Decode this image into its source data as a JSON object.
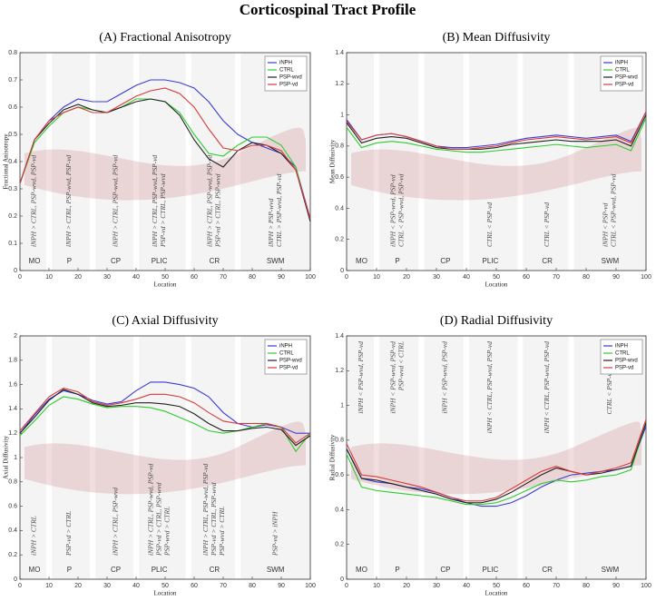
{
  "title": "Corticospinal Tract Profile",
  "chart_data": [
    {
      "type": "line",
      "title": "(A) Fractional Anisotropy",
      "xlabel": "Location",
      "ylabel": "Fractional Anisotropy",
      "x": [
        0,
        5,
        10,
        15,
        20,
        25,
        30,
        35,
        40,
        45,
        50,
        55,
        60,
        65,
        70,
        75,
        80,
        85,
        90,
        95,
        100
      ],
      "xlim": [
        0,
        100
      ],
      "xticks": [
        0,
        10,
        20,
        30,
        40,
        50,
        60,
        70,
        80,
        90,
        100
      ],
      "ylim": [
        0,
        0.8
      ],
      "yticks": [
        0,
        0.1,
        0.2,
        0.3,
        0.4,
        0.5,
        0.6,
        0.7,
        0.8
      ],
      "legend": "upper right",
      "annotation_position": "bottom",
      "series": [
        {
          "name": "iNPH",
          "color": "#3b3bd6",
          "values": [
            0.32,
            0.48,
            0.55,
            0.6,
            0.63,
            0.62,
            0.62,
            0.65,
            0.68,
            0.7,
            0.7,
            0.69,
            0.67,
            0.62,
            0.55,
            0.5,
            0.47,
            0.45,
            0.43,
            0.38,
            0.19
          ]
        },
        {
          "name": "CTRL",
          "color": "#2ecc2e",
          "values": [
            0.32,
            0.47,
            0.53,
            0.58,
            0.6,
            0.59,
            0.58,
            0.6,
            0.63,
            0.63,
            0.62,
            0.58,
            0.5,
            0.43,
            0.42,
            0.46,
            0.49,
            0.49,
            0.46,
            0.38,
            0.18
          ]
        },
        {
          "name": "PSP-wvd",
          "color": "#222222",
          "values": [
            0.32,
            0.48,
            0.54,
            0.59,
            0.61,
            0.59,
            0.58,
            0.6,
            0.62,
            0.63,
            0.62,
            0.57,
            0.48,
            0.41,
            0.38,
            0.44,
            0.47,
            0.46,
            0.43,
            0.37,
            0.18
          ]
        },
        {
          "name": "PSP-vd",
          "color": "#d83a3a",
          "values": [
            0.32,
            0.48,
            0.55,
            0.58,
            0.6,
            0.58,
            0.58,
            0.61,
            0.64,
            0.66,
            0.67,
            0.65,
            0.6,
            0.52,
            0.45,
            0.44,
            0.46,
            0.46,
            0.44,
            0.37,
            0.19
          ]
        }
      ],
      "regions": [
        "MO",
        "P",
        "CP",
        "PLIC",
        "CR",
        "SWM"
      ],
      "annotations": [
        [
          "iNPH > CTRL, PSP-wvd, PSP-vd"
        ],
        [
          "iNPH > CTRL, PSP-wvd, PSP-vd"
        ],
        [
          "iNPH > CTRL, PSP-wvd, PSP-vd"
        ],
        [
          "iNPH > CTRL, PSP-wvd, PSP-vd",
          "PSP-vd > CTRL, PSP-wvd"
        ],
        [
          "iNPH > CTRL, PSP-wvd, PSP-vd",
          "PSP-vd > CTRL, PSP-wvd"
        ],
        [
          "iNPH > PSP-wvd",
          "CTRL > PSP-wvd, PSP-vd"
        ]
      ]
    },
    {
      "type": "line",
      "title": "(B) Mean Diffusivity",
      "xlabel": "Location",
      "ylabel": "Mean Diffusivity",
      "x": [
        0,
        5,
        10,
        15,
        20,
        25,
        30,
        35,
        40,
        45,
        50,
        55,
        60,
        65,
        70,
        75,
        80,
        85,
        90,
        95,
        100
      ],
      "xlim": [
        0,
        100
      ],
      "xticks": [
        0,
        10,
        20,
        30,
        40,
        50,
        60,
        70,
        80,
        90,
        100
      ],
      "ylim": [
        0,
        1.4
      ],
      "yticks": [
        0,
        0.2,
        0.4,
        0.6,
        0.8,
        1,
        1.2,
        1.4
      ],
      "legend": "upper right",
      "annotation_position": "bottom",
      "series": [
        {
          "name": "iNPH",
          "color": "#3b3bd6",
          "values": [
            0.97,
            0.84,
            0.87,
            0.88,
            0.86,
            0.83,
            0.8,
            0.79,
            0.79,
            0.8,
            0.81,
            0.83,
            0.85,
            0.86,
            0.87,
            0.86,
            0.85,
            0.86,
            0.87,
            0.83,
            1.02
          ]
        },
        {
          "name": "CTRL",
          "color": "#2ecc2e",
          "values": [
            0.92,
            0.79,
            0.82,
            0.83,
            0.82,
            0.8,
            0.78,
            0.77,
            0.76,
            0.76,
            0.77,
            0.78,
            0.79,
            0.8,
            0.81,
            0.8,
            0.79,
            0.8,
            0.81,
            0.77,
            0.98
          ]
        },
        {
          "name": "PSP-wvd",
          "color": "#222222",
          "values": [
            0.95,
            0.82,
            0.85,
            0.86,
            0.85,
            0.82,
            0.79,
            0.78,
            0.78,
            0.78,
            0.79,
            0.81,
            0.82,
            0.83,
            0.84,
            0.83,
            0.83,
            0.83,
            0.84,
            0.8,
            1.0
          ]
        },
        {
          "name": "PSP-vd",
          "color": "#d83a3a",
          "values": [
            0.96,
            0.84,
            0.87,
            0.88,
            0.86,
            0.83,
            0.8,
            0.78,
            0.78,
            0.79,
            0.8,
            0.82,
            0.84,
            0.85,
            0.86,
            0.85,
            0.84,
            0.85,
            0.86,
            0.82,
            1.02
          ]
        }
      ],
      "regions": [
        "MO",
        "P",
        "CP",
        "PLIC",
        "CR",
        "SWM"
      ],
      "annotations": [
        [],
        [
          "iNPH < PSP-wvd, PSP-vd",
          "CTRL < PSP-wvd, PSP-vd"
        ],
        [],
        [
          "CTRL < PSP-vd"
        ],
        [
          "CTRL < PSP-vd"
        ],
        [
          "iNPH < PSP-vd",
          "CTRL < PSP-wvd, PSP-vd"
        ]
      ]
    },
    {
      "type": "line",
      "title": "(C) Axial Diffusivity",
      "xlabel": "Location",
      "ylabel": "Axial Diffusivity",
      "x": [
        0,
        5,
        10,
        15,
        20,
        25,
        30,
        35,
        40,
        45,
        50,
        55,
        60,
        65,
        70,
        75,
        80,
        85,
        90,
        95,
        100
      ],
      "xlim": [
        0,
        100
      ],
      "xticks": [
        0,
        10,
        20,
        30,
        40,
        50,
        60,
        70,
        80,
        90,
        100
      ],
      "ylim": [
        0,
        2
      ],
      "yticks": [
        0,
        0.2,
        0.4,
        0.6,
        0.8,
        1,
        1.2,
        1.4,
        1.6,
        1.8,
        2
      ],
      "legend": "upper right",
      "annotation_position": "bottom",
      "series": [
        {
          "name": "iNPH",
          "color": "#3b3bd6",
          "values": [
            1.2,
            1.35,
            1.48,
            1.55,
            1.52,
            1.47,
            1.44,
            1.46,
            1.55,
            1.62,
            1.62,
            1.6,
            1.57,
            1.5,
            1.37,
            1.28,
            1.25,
            1.27,
            1.25,
            1.2,
            1.2
          ]
        },
        {
          "name": "CTRL",
          "color": "#2ecc2e",
          "values": [
            1.18,
            1.3,
            1.43,
            1.5,
            1.48,
            1.44,
            1.41,
            1.42,
            1.42,
            1.41,
            1.38,
            1.33,
            1.28,
            1.22,
            1.2,
            1.22,
            1.25,
            1.28,
            1.25,
            1.05,
            1.2
          ]
        },
        {
          "name": "PSP-wvd",
          "color": "#222222",
          "values": [
            1.2,
            1.33,
            1.47,
            1.56,
            1.52,
            1.45,
            1.42,
            1.43,
            1.45,
            1.45,
            1.44,
            1.42,
            1.36,
            1.28,
            1.22,
            1.22,
            1.24,
            1.25,
            1.23,
            1.1,
            1.18
          ]
        },
        {
          "name": "PSP-vd",
          "color": "#d83a3a",
          "values": [
            1.22,
            1.36,
            1.5,
            1.57,
            1.54,
            1.46,
            1.43,
            1.45,
            1.48,
            1.52,
            1.52,
            1.5,
            1.45,
            1.37,
            1.3,
            1.28,
            1.28,
            1.28,
            1.25,
            1.12,
            1.2
          ]
        }
      ],
      "regions": [
        "MO",
        "P",
        "CP",
        "PLIC",
        "CR",
        "SWM"
      ],
      "annotations": [
        [
          "iNPH > CTRL"
        ],
        [
          "PSP-vd > CTRL"
        ],
        [
          "iNPH > CTRL, PSP-wvd"
        ],
        [
          "iNPH > CTRL, PSP-wvd, PSP-vd",
          "PSP-vd > CTRL, PSP-wvd",
          "PSP-wvd > CTRL"
        ],
        [
          "iNPH > CTRL, PSP-wvd, PSP-vd",
          "PSP-vd > CTRL, PSP-wvd",
          "PSP-wvd > CTRL"
        ],
        [
          "PSP-vd > iNPH"
        ]
      ]
    },
    {
      "type": "line",
      "title": "(D) Radial Diffusivity",
      "xlabel": "Location",
      "ylabel": "Radial Diffusivity",
      "x": [
        0,
        5,
        10,
        15,
        20,
        25,
        30,
        35,
        40,
        45,
        50,
        55,
        60,
        65,
        70,
        75,
        80,
        85,
        90,
        95,
        100
      ],
      "xlim": [
        0,
        100
      ],
      "xticks": [
        0,
        10,
        20,
        30,
        40,
        50,
        60,
        70,
        80,
        90,
        100
      ],
      "ylim": [
        0,
        1.4
      ],
      "yticks": [
        0,
        0.2,
        0.4,
        0.6,
        0.8,
        1,
        1.2,
        1.4
      ],
      "legend": "upper right",
      "annotation_position": "top",
      "series": [
        {
          "name": "iNPH",
          "color": "#3b3bd6",
          "values": [
            0.75,
            0.58,
            0.56,
            0.55,
            0.53,
            0.52,
            0.5,
            0.47,
            0.44,
            0.42,
            0.42,
            0.44,
            0.48,
            0.53,
            0.57,
            0.6,
            0.61,
            0.62,
            0.63,
            0.65,
            0.88
          ]
        },
        {
          "name": "CTRL",
          "color": "#2ecc2e",
          "values": [
            0.72,
            0.53,
            0.51,
            0.5,
            0.49,
            0.48,
            0.47,
            0.45,
            0.43,
            0.43,
            0.44,
            0.47,
            0.51,
            0.55,
            0.57,
            0.56,
            0.57,
            0.59,
            0.6,
            0.63,
            0.9
          ]
        },
        {
          "name": "PSP-wvd",
          "color": "#222222",
          "values": [
            0.75,
            0.58,
            0.57,
            0.55,
            0.53,
            0.51,
            0.49,
            0.46,
            0.44,
            0.44,
            0.46,
            0.5,
            0.55,
            0.6,
            0.64,
            0.62,
            0.6,
            0.61,
            0.63,
            0.65,
            0.9
          ]
        },
        {
          "name": "PSP-vd",
          "color": "#d83a3a",
          "values": [
            0.78,
            0.6,
            0.59,
            0.57,
            0.55,
            0.53,
            0.5,
            0.47,
            0.45,
            0.45,
            0.47,
            0.52,
            0.57,
            0.62,
            0.65,
            0.62,
            0.6,
            0.62,
            0.64,
            0.67,
            0.92
          ]
        }
      ],
      "regions": [
        "MO",
        "P",
        "CP",
        "PLIC",
        "CR",
        "SWM"
      ],
      "annotations": [
        [
          "iNPH < PSP-wvd, PSP-vd"
        ],
        [
          "iNPH < PSP-wvd, PSP-vd",
          "PSP-wvd < CTRL"
        ],
        [
          "iNPH < PSP-wvd, PSP-vd"
        ],
        [
          "iNPH < CTRL, PSP-wvd, PSP-vd"
        ],
        [
          "iNPH < CTRL, PSP-wvd, PSP-vd"
        ],
        [
          "CTRL < PSP-wvd, PSP-vd"
        ]
      ]
    }
  ]
}
